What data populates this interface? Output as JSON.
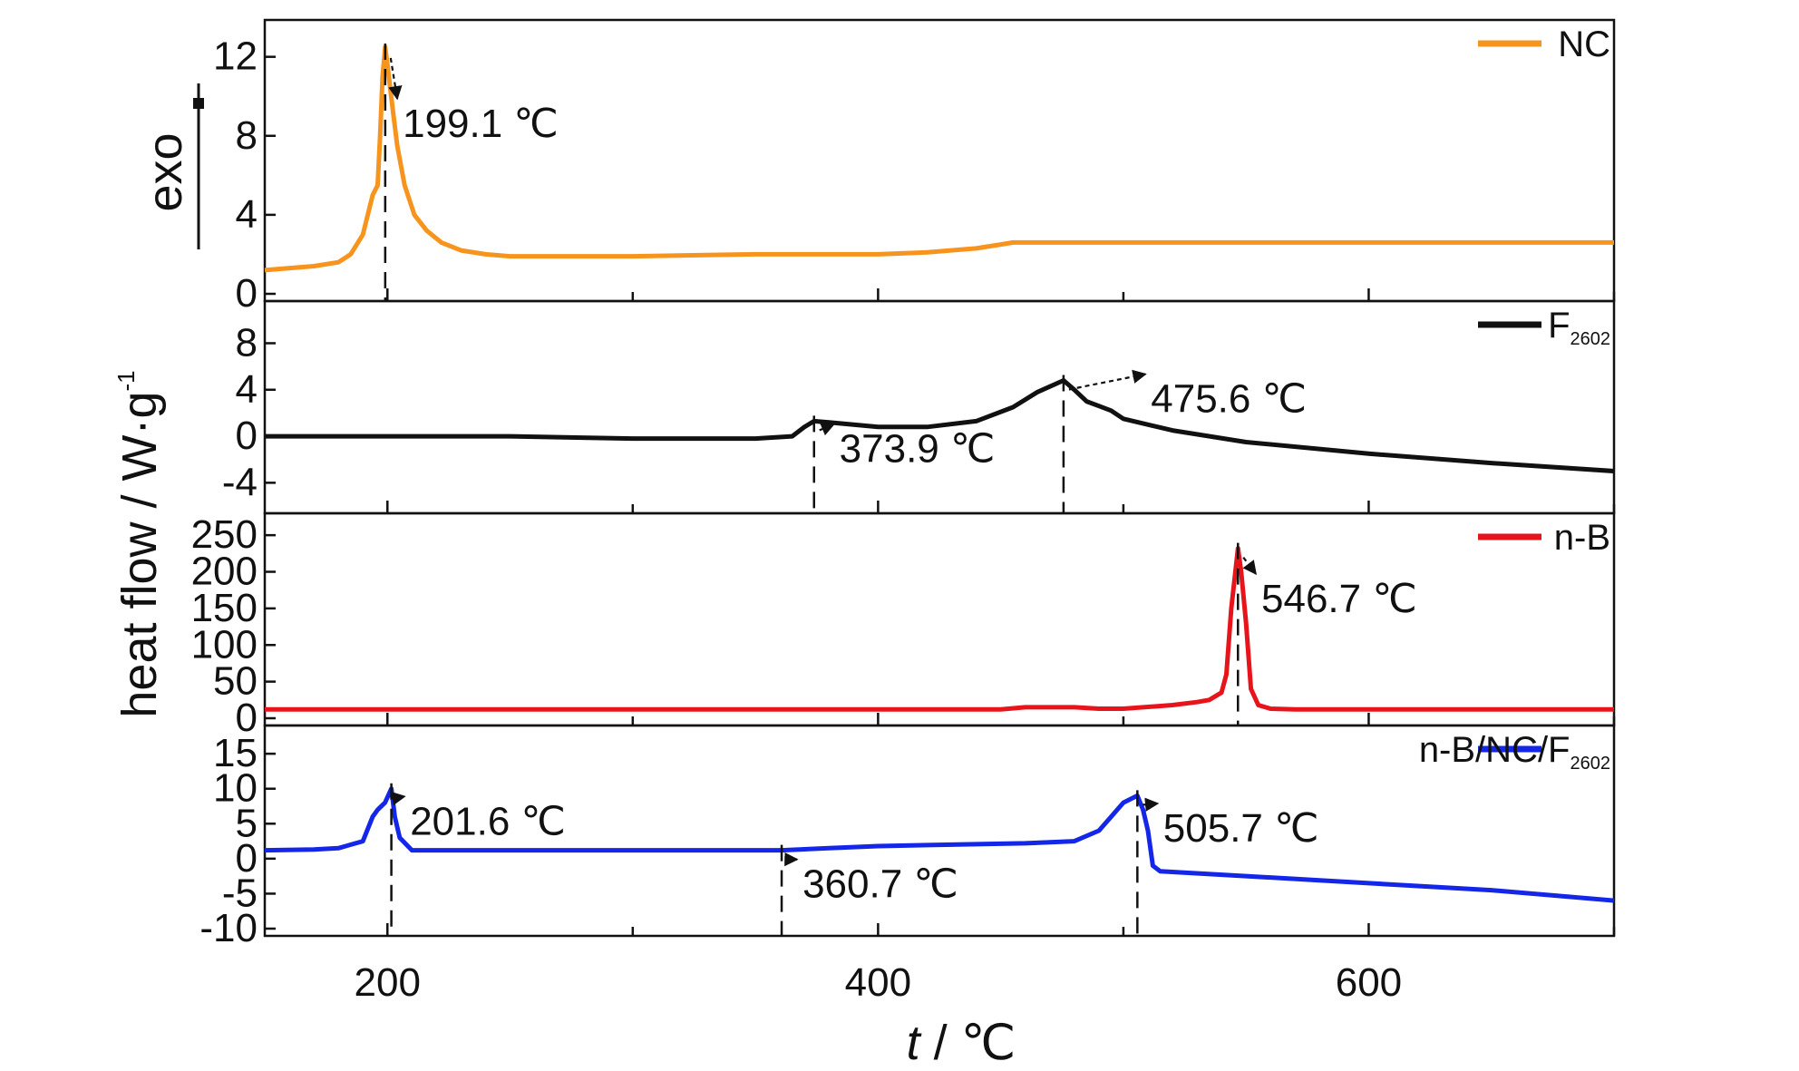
{
  "chart_data": {
    "type": "line",
    "x_axis": {
      "label_italic": "t",
      "label_rest": " / ℃",
      "range": [
        150,
        700
      ],
      "ticks": [
        200,
        400,
        600
      ],
      "tick_labels": [
        "200",
        "400",
        "600"
      ]
    },
    "y_axis_label": "heat flow / W·g",
    "y_axis_label_sup": "-1",
    "exo_label": "exo",
    "panels": [
      {
        "name": "NC",
        "legend": "NC",
        "legend_sub": "",
        "color": "#F7941D",
        "ylim": [
          0,
          13.5
        ],
        "yticks": [
          0,
          4,
          8,
          12
        ],
        "ytick_labels": [
          "0",
          "4",
          "8",
          "12"
        ],
        "x": [
          150,
          170,
          180,
          185,
          190,
          194,
          196,
          197,
          198,
          199.1,
          200,
          202,
          204,
          207,
          211,
          216,
          222,
          230,
          240,
          250,
          300,
          350,
          400,
          420,
          440,
          450,
          455,
          460,
          500,
          600,
          700
        ],
        "y": [
          1.2,
          1.4,
          1.6,
          2.0,
          3.0,
          5.0,
          5.5,
          8.0,
          11.0,
          12.5,
          11.6,
          9.5,
          7.5,
          5.5,
          4.0,
          3.2,
          2.6,
          2.2,
          2.0,
          1.9,
          1.9,
          2.0,
          2.0,
          2.1,
          2.3,
          2.5,
          2.6,
          2.6,
          2.6,
          2.6,
          2.6
        ],
        "annotations": [
          {
            "text": "199.1 ℃",
            "peak_x": 199.1,
            "peak_y": 12.4,
            "label_x": 204,
            "label_y": 8.5,
            "text_anchor": "start"
          }
        ]
      },
      {
        "name": "F2602",
        "legend": "F",
        "legend_sub": "2602",
        "color": "#111111",
        "ylim": [
          -6,
          11
        ],
        "yticks": [
          -4,
          0,
          4,
          8
        ],
        "ytick_labels": [
          "-4",
          "0",
          "4",
          "8"
        ],
        "x": [
          150,
          250,
          300,
          350,
          365,
          370,
          373.9,
          380,
          390,
          400,
          420,
          440,
          455,
          465,
          475.6,
          480,
          485,
          490,
          495,
          500,
          520,
          550,
          600,
          650,
          700
        ],
        "y": [
          0.0,
          0.0,
          -0.2,
          -0.2,
          0.0,
          0.8,
          1.3,
          1.2,
          1.0,
          0.8,
          0.8,
          1.3,
          2.5,
          3.8,
          4.8,
          4.0,
          3.0,
          2.6,
          2.2,
          1.5,
          0.5,
          -0.5,
          -1.5,
          -2.3,
          -3.0
        ],
        "annotations": [
          {
            "text": "475.6 ℃",
            "peak_x": 475.6,
            "peak_y": 4.8,
            "label_x": 509,
            "label_y": 3.0,
            "text_anchor": "start"
          },
          {
            "text": "373.9 ℃",
            "peak_x": 373.9,
            "peak_y": 1.3,
            "label_x": 382,
            "label_y": -1.3,
            "text_anchor": "start"
          }
        ]
      },
      {
        "name": "n-B",
        "legend": "n-B",
        "legend_sub": "",
        "color": "#E8141B",
        "ylim": [
          0,
          270
        ],
        "yticks": [
          0,
          50,
          100,
          150,
          200,
          250
        ],
        "ytick_labels": [
          "0",
          "50",
          "100",
          "150",
          "200",
          "250"
        ],
        "x": [
          150,
          300,
          450,
          460,
          480,
          490,
          500,
          520,
          530,
          535,
          540,
          542,
          544,
          546.7,
          548,
          550,
          552,
          555,
          560,
          570,
          600,
          650,
          700
        ],
        "y": [
          12,
          12,
          12,
          15,
          15,
          13,
          13,
          18,
          22,
          25,
          35,
          60,
          150,
          232,
          200,
          130,
          40,
          18,
          13,
          12,
          12,
          12,
          12
        ],
        "annotations": [
          {
            "text": "546.7 ℃",
            "peak_x": 546.7,
            "peak_y": 232,
            "label_x": 554,
            "label_y": 160,
            "text_anchor": "start"
          }
        ]
      },
      {
        "name": "n-B/NC/F2602",
        "legend": "n-B/NC/F",
        "legend_sub": "2602",
        "color": "#1426E8",
        "ylim": [
          -10,
          18
        ],
        "yticks": [
          -10,
          -5,
          0,
          5,
          10,
          15
        ],
        "ytick_labels": [
          "-10",
          "-5",
          "0",
          "5",
          "10",
          "15"
        ],
        "x": [
          150,
          170,
          180,
          190,
          194,
          196,
          199,
          201.6,
          203,
          205,
          210,
          250,
          300,
          360.7,
          380,
          400,
          430,
          460,
          480,
          490,
          495,
          500,
          505.7,
          508,
          510,
          512,
          515,
          550,
          600,
          650,
          700
        ],
        "y": [
          1.2,
          1.3,
          1.5,
          2.5,
          6.0,
          7.0,
          8.0,
          10.0,
          6.0,
          3.0,
          1.2,
          1.2,
          1.2,
          1.2,
          1.5,
          1.8,
          2.0,
          2.2,
          2.5,
          4.0,
          6.0,
          8.0,
          9.0,
          7.0,
          4.0,
          -1.0,
          -1.8,
          -2.5,
          -3.5,
          -4.5,
          -6.0
        ],
        "annotations": [
          {
            "text": "201.6 ℃",
            "peak_x": 201.6,
            "peak_y": 10.0,
            "label_x": 207,
            "label_y": 5.0,
            "text_anchor": "start"
          },
          {
            "text": "360.7 ℃",
            "peak_x": 360.7,
            "peak_y": 1.2,
            "label_x": 367,
            "label_y": -4.0,
            "text_anchor": "start"
          },
          {
            "text": "505.7 ℃",
            "peak_x": 505.7,
            "peak_y": 9.0,
            "label_x": 514,
            "label_y": 4.0,
            "text_anchor": "start"
          }
        ]
      }
    ]
  }
}
